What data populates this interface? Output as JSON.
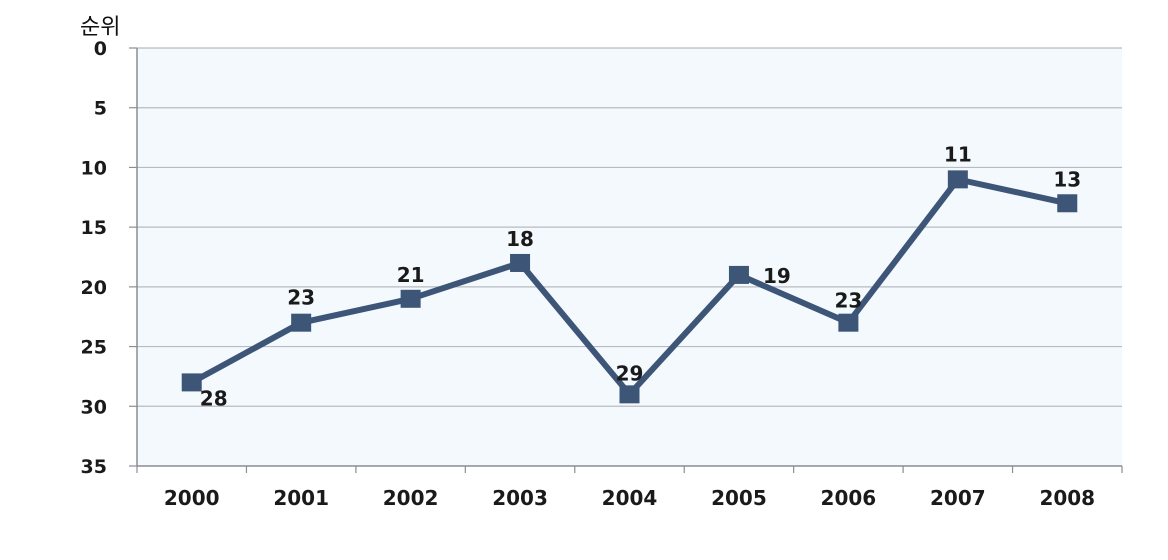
{
  "chart_data": {
    "type": "line",
    "ylabel": "순위",
    "xlabel": "",
    "title": "",
    "categories": [
      "2000",
      "2001",
      "2002",
      "2003",
      "2004",
      "2005",
      "2006",
      "2007",
      "2008"
    ],
    "series": [
      {
        "values": [
          28,
          23,
          21,
          18,
          29,
          19,
          23,
          11,
          13
        ]
      }
    ],
    "ylim": [
      0,
      35
    ],
    "y_inverted": true,
    "yticks": [
      "0",
      "5",
      "10",
      "15",
      "20",
      "25",
      "30",
      "35"
    ],
    "data_labels": [
      "28",
      "23",
      "21",
      "18",
      "29",
      "19",
      "23",
      "11",
      "13"
    ],
    "grid": true,
    "colors": {
      "line": "#3d5577",
      "marker": "#3d5577",
      "plot_bg": "#f3f9fc",
      "grid": "#b8bcc2"
    }
  }
}
